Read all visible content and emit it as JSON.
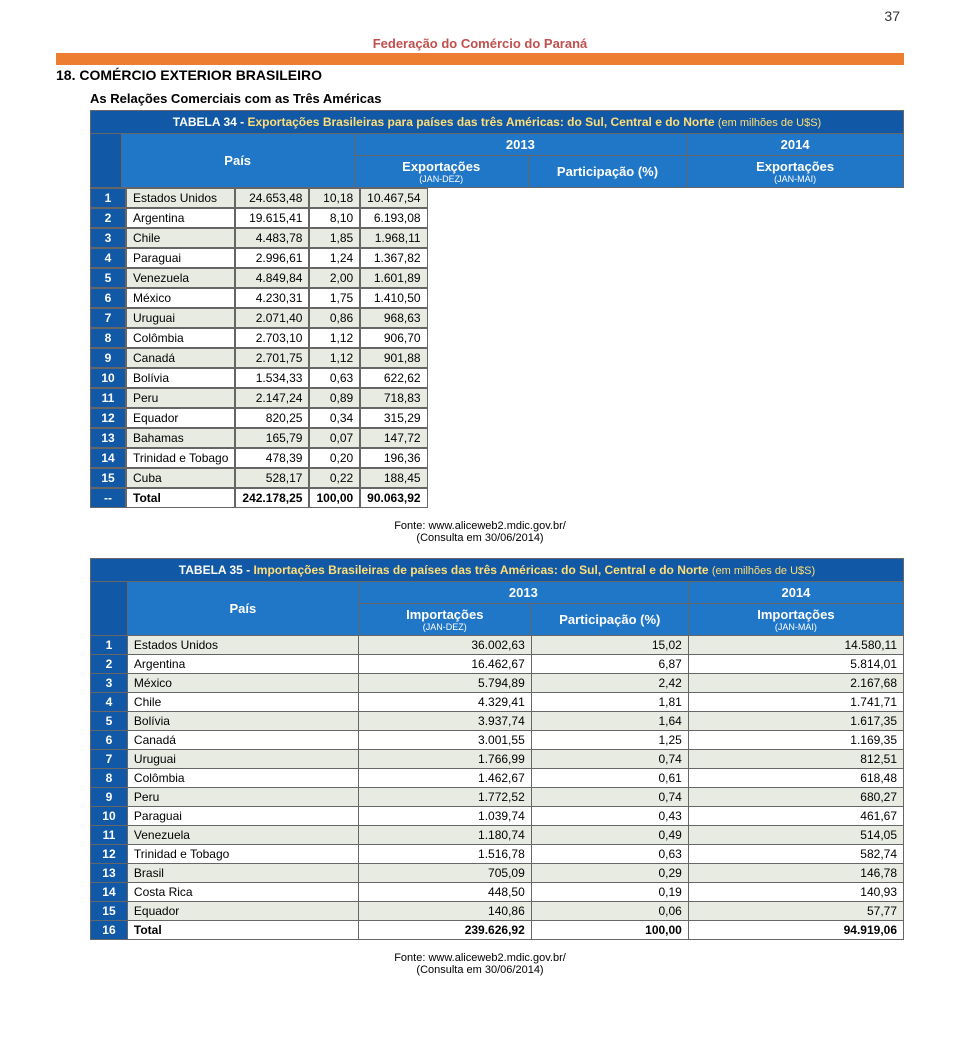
{
  "page_number": "37",
  "federation": "Federação do Comércio do Paraná",
  "section_title": "18. COMÉRCIO EXTERIOR BRASILEIRO",
  "subtitle": "As Relações Comerciais com as Três Américas",
  "source_line1": "Fonte: www.aliceweb2.mdic.gov.br/",
  "source_line2": "(Consulta em 30/06/2014)",
  "table34": {
    "title_prefix": "TABELA 34 - ",
    "title_main": "Exportações Brasileiras para países das três Américas: do Sul, Central e do Norte ",
    "title_unit": "(em milhões de U$S)",
    "col_pais": "País",
    "col_year1": "2013",
    "col_year2": "2014",
    "col_export": "Exportações",
    "col_export_sub": "(JAN-DEZ)",
    "col_part": "Participação (%)",
    "col_export2": "Exportações",
    "col_export2_sub": "(JAN-MAI)",
    "rows": [
      {
        "rank": "1",
        "country": "Estados Unidos",
        "v1": "24.653,48",
        "v2": "10,18",
        "v3": "10.467,54"
      },
      {
        "rank": "2",
        "country": "Argentina",
        "v1": "19.615,41",
        "v2": "8,10",
        "v3": "6.193,08"
      },
      {
        "rank": "3",
        "country": "Chile",
        "v1": "4.483,78",
        "v2": "1,85",
        "v3": "1.968,11"
      },
      {
        "rank": "4",
        "country": "Paraguai",
        "v1": "2.996,61",
        "v2": "1,24",
        "v3": "1.367,82"
      },
      {
        "rank": "5",
        "country": "Venezuela",
        "v1": "4.849,84",
        "v2": "2,00",
        "v3": "1.601,89"
      },
      {
        "rank": "6",
        "country": "México",
        "v1": "4.230,31",
        "v2": "1,75",
        "v3": "1.410,50"
      },
      {
        "rank": "7",
        "country": "Uruguai",
        "v1": "2.071,40",
        "v2": "0,86",
        "v3": "968,63"
      },
      {
        "rank": "8",
        "country": "Colômbia",
        "v1": "2.703,10",
        "v2": "1,12",
        "v3": "906,70"
      },
      {
        "rank": "9",
        "country": "Canadá",
        "v1": "2.701,75",
        "v2": "1,12",
        "v3": "901,88"
      },
      {
        "rank": "10",
        "country": "Bolívia",
        "v1": "1.534,33",
        "v2": "0,63",
        "v3": "622,62"
      },
      {
        "rank": "11",
        "country": "Peru",
        "v1": "2.147,24",
        "v2": "0,89",
        "v3": "718,83"
      },
      {
        "rank": "12",
        "country": "Equador",
        "v1": "820,25",
        "v2": "0,34",
        "v3": "315,29"
      },
      {
        "rank": "13",
        "country": "Bahamas",
        "v1": "165,79",
        "v2": "0,07",
        "v3": "147,72"
      },
      {
        "rank": "14",
        "country": "Trinidad e Tobago",
        "v1": "478,39",
        "v2": "0,20",
        "v3": "196,36"
      },
      {
        "rank": "15",
        "country": "Cuba",
        "v1": "528,17",
        "v2": "0,22",
        "v3": "188,45"
      }
    ],
    "total": {
      "rank": "--",
      "country": "Total",
      "v1": "242.178,25",
      "v2": "100,00",
      "v3": "90.063,92"
    }
  },
  "table35": {
    "title_prefix": "TABELA 35 - ",
    "title_main": "Importações Brasileiras de países das três Américas: do Sul, Central e do Norte ",
    "title_unit": "(em milhões de U$S)",
    "col_pais": "País",
    "col_year1": "2013",
    "col_year2": "2014",
    "col_import": "Importações",
    "col_import_sub": "(JAN-DEZ)",
    "col_part": "Participação (%)",
    "col_import2": "Importações",
    "col_import2_sub": "(JAN-MAI)",
    "rows": [
      {
        "rank": "1",
        "country": "Estados Unidos",
        "v1": "36.002,63",
        "v2": "15,02",
        "v3": "14.580,11"
      },
      {
        "rank": "2",
        "country": "Argentina",
        "v1": "16.462,67",
        "v2": "6,87",
        "v3": "5.814,01"
      },
      {
        "rank": "3",
        "country": "México",
        "v1": "5.794,89",
        "v2": "2,42",
        "v3": "2.167,68"
      },
      {
        "rank": "4",
        "country": "Chile",
        "v1": "4.329,41",
        "v2": "1,81",
        "v3": "1.741,71"
      },
      {
        "rank": "5",
        "country": "Bolívia",
        "v1": "3.937,74",
        "v2": "1,64",
        "v3": "1.617,35"
      },
      {
        "rank": "6",
        "country": "Canadá",
        "v1": "3.001,55",
        "v2": "1,25",
        "v3": "1.169,35"
      },
      {
        "rank": "7",
        "country": "Uruguai",
        "v1": "1.766,99",
        "v2": "0,74",
        "v3": "812,51"
      },
      {
        "rank": "8",
        "country": "Colômbia",
        "v1": "1.462,67",
        "v2": "0,61",
        "v3": "618,48"
      },
      {
        "rank": "9",
        "country": "Peru",
        "v1": "1.772,52",
        "v2": "0,74",
        "v3": "680,27"
      },
      {
        "rank": "10",
        "country": "Paraguai",
        "v1": "1.039,74",
        "v2": "0,43",
        "v3": "461,67"
      },
      {
        "rank": "11",
        "country": "Venezuela",
        "v1": "1.180,74",
        "v2": "0,49",
        "v3": "514,05"
      },
      {
        "rank": "12",
        "country": "Trinidad e Tobago",
        "v1": "1.516,78",
        "v2": "0,63",
        "v3": "582,74"
      },
      {
        "rank": "13",
        "country": "Brasil",
        "v1": "705,09",
        "v2": "0,29",
        "v3": "146,78"
      },
      {
        "rank": "14",
        "country": "Costa Rica",
        "v1": "448,50",
        "v2": "0,19",
        "v3": "140,93"
      },
      {
        "rank": "15",
        "country": "Equador",
        "v1": "140,86",
        "v2": "0,06",
        "v3": "57,77"
      }
    ],
    "total": {
      "rank": "16",
      "country": "Total",
      "v1": "239.626,92",
      "v2": "100,00",
      "v3": "94.919,06"
    }
  }
}
